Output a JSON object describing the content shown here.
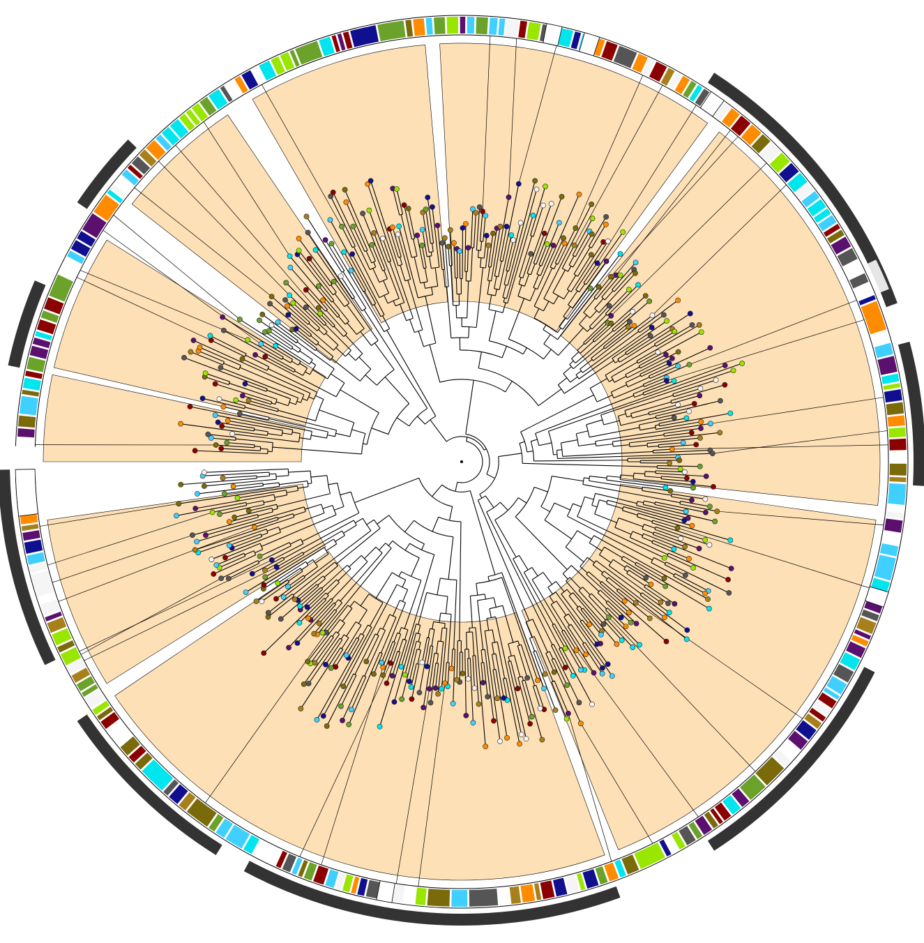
{
  "figure": {
    "kind": "circular phylogenetic tree",
    "text": []
  },
  "palette": {
    "highlight_fill": "#fde0b6",
    "branch": "#000000",
    "outer_band": "#333333",
    "gap_band": "#e6e6e6",
    "tips": [
      "#5b0f6e",
      "#0f0f8f",
      "#00e5ee",
      "#7a6a0a",
      "#8b0000",
      "#99e600",
      "#6aa22a",
      "#ff8c00",
      "#555555",
      "#f5f5f5",
      "#a8801b",
      "#3fd0ff"
    ]
  },
  "sectors": [
    {
      "from": -90,
      "to": -78
    },
    {
      "from": -77,
      "to": -58
    },
    {
      "from": -52,
      "to": -34
    },
    {
      "from": -30,
      "to": -5
    },
    {
      "from": -3,
      "to": 36
    },
    {
      "from": 38,
      "to": 96
    },
    {
      "from": 98,
      "to": 158
    },
    {
      "from": 160,
      "to": 236
    },
    {
      "from": 238,
      "to": 262
    }
  ],
  "outer_bands": [
    {
      "from": -78,
      "to": -67
    },
    {
      "from": -56,
      "to": -46
    },
    {
      "from": 33,
      "to": 70
    },
    {
      "from": 75,
      "to": 93
    },
    {
      "from": 117,
      "to": 147
    },
    {
      "from": 160,
      "to": 208
    },
    {
      "from": 212,
      "to": 236
    },
    {
      "from": 244,
      "to": 269
    }
  ],
  "sector_gaps": [
    {
      "from": -97,
      "to": -91
    },
    {
      "from": 11,
      "to": 13
    },
    {
      "from": 16,
      "to": 18
    },
    {
      "from": 34,
      "to": 36
    },
    {
      "from": 107,
      "to": 109
    },
    {
      "from": 189,
      "to": 191
    }
  ],
  "tip_count": 470,
  "ring_track_count": 1
}
